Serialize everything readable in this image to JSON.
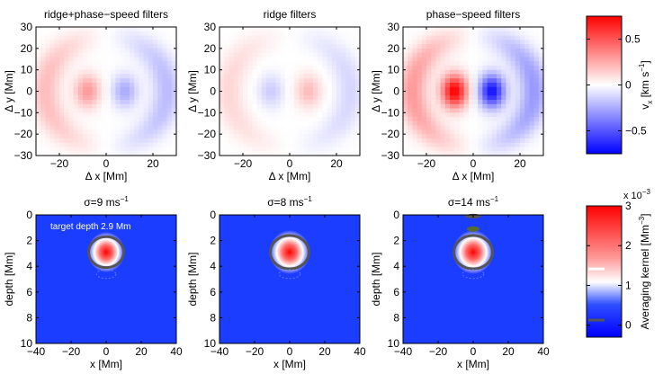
{
  "chart_data": [
    {
      "type": "heatmap",
      "title": "ridge+phase−speed filters",
      "xlabel": "Δ x [Mm]",
      "ylabel": "Δ y [Mm]",
      "xlim": [
        -30,
        30
      ],
      "ylim": [
        -30,
        30
      ],
      "xticks": [
        "−20",
        "0",
        "20"
      ],
      "yticks": [
        "−30",
        "−20",
        "−10",
        "0",
        "10",
        "20",
        "30"
      ],
      "pattern": {
        "left_lobe": 0.3,
        "right_lobe": -0.25,
        "ring": 0.2
      }
    },
    {
      "type": "heatmap",
      "title": "ridge filters",
      "xlabel": "Δ x [Mm]",
      "ylabel": "Δ y [Mm]",
      "xlim": [
        -30,
        30
      ],
      "ylim": [
        -30,
        30
      ],
      "xticks": [
        "−20",
        "0",
        "20"
      ],
      "yticks": [
        "−30",
        "−20",
        "−10",
        "0",
        "10",
        "20",
        "30"
      ],
      "pattern": {
        "left_lobe": -0.15,
        "right_lobe": 0.2,
        "ring": 0.12
      }
    },
    {
      "type": "heatmap",
      "title": "phase−speed filters",
      "xlabel": "Δ x [Mm]",
      "ylabel": "Δ y [Mm]",
      "xlim": [
        -30,
        30
      ],
      "ylim": [
        -30,
        30
      ],
      "xticks": [
        "−20",
        "0",
        "20"
      ],
      "yticks": [
        "−30",
        "−20",
        "−10",
        "0",
        "10",
        "20",
        "30"
      ],
      "pattern": {
        "left_lobe": 0.75,
        "right_lobe": -0.7,
        "ring": 0.3
      }
    },
    {
      "type": "heatmap",
      "title": "σ=9 ms",
      "title_sup": "−1",
      "annotation": "target depth 2.9 Mm",
      "xlabel": "x [Mm]",
      "ylabel": "depth [Mm]",
      "xlim": [
        -40,
        40
      ],
      "ylim": [
        10,
        0
      ],
      "xticks": [
        "−40",
        "−20",
        "0",
        "20",
        "40"
      ],
      "yticks": [
        "0",
        "2",
        "4",
        "6",
        "8",
        "10"
      ],
      "kernel": {
        "peak_depth": 2.9,
        "ellipse_rx": 10,
        "ellipse_ry": 1.2
      }
    },
    {
      "type": "heatmap",
      "title": "σ=8 ms",
      "title_sup": "−1",
      "xlabel": "x [Mm]",
      "ylabel": "depth [Mm]",
      "xlim": [
        -40,
        40
      ],
      "ylim": [
        10,
        0
      ],
      "xticks": [
        "−40",
        "−20",
        "0",
        "20",
        "40"
      ],
      "yticks": [
        "0",
        "2",
        "4",
        "6",
        "8",
        "10"
      ],
      "kernel": {
        "peak_depth": 2.9,
        "ellipse_rx": 11,
        "ellipse_ry": 1.3
      }
    },
    {
      "type": "heatmap",
      "title": "σ=14 ms",
      "title_sup": "−1",
      "xlabel": "x [Mm]",
      "ylabel": "depth [Mm]",
      "xlim": [
        -40,
        40
      ],
      "ylim": [
        10,
        0
      ],
      "xticks": [
        "−40",
        "−20",
        "0",
        "20",
        "40"
      ],
      "yticks": [
        "0",
        "2",
        "4",
        "6",
        "8",
        "10"
      ],
      "kernel": {
        "peak_depth": 2.9,
        "ellipse_rx": 11,
        "ellipse_ry": 1.3
      }
    }
  ],
  "colorbars": [
    {
      "label_main": "v",
      "label_sub": "x",
      "label_units": " [km s",
      "label_sup": "−1",
      "label_close": "]",
      "range": [
        -0.75,
        0.75
      ],
      "ticks": [
        {
          "v": 0.5,
          "t": "0.5"
        },
        {
          "v": 0,
          "t": "0"
        },
        {
          "v": -0.5,
          "t": "−0.5"
        }
      ]
    },
    {
      "label_main": "Averaging kernel [Mm",
      "label_sup": "−3",
      "label_close": "]",
      "scale_base": "x 10",
      "scale_sup": "−3",
      "range": [
        -0.3,
        3
      ],
      "ticks": [
        {
          "v": 3,
          "t": "3"
        },
        {
          "v": 2,
          "t": "2"
        },
        {
          "v": 1,
          "t": "1"
        },
        {
          "v": 0,
          "t": "0"
        }
      ]
    }
  ],
  "colors": {
    "red": "#ff0000",
    "white": "#ffffff",
    "blue": "#0000ff",
    "contour": "#555555"
  }
}
